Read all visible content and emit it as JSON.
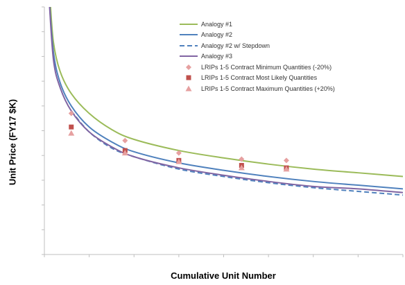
{
  "chart_data": {
    "type": "line",
    "title": "",
    "xlabel": "Cumulative Unit Number",
    "ylabel": "Unit Price (FY17 $K)",
    "xlim": [
      0,
      8
    ],
    "ylim": [
      0,
      10
    ],
    "grid": false,
    "legend_placement": "top-right",
    "series": [
      {
        "name": "Analogy #1",
        "kind": "line",
        "style": "solid",
        "color": "#9bbb59",
        "x": [
          0.12,
          0.2,
          0.35,
          0.6,
          1.0,
          1.5,
          2.0,
          3.0,
          4.0,
          5.0,
          6.0,
          7.0,
          8.0
        ],
        "y": [
          10.5,
          8.6,
          7.4,
          6.5,
          5.7,
          5.05,
          4.65,
          4.2,
          3.9,
          3.65,
          3.45,
          3.3,
          3.15
        ]
      },
      {
        "name": "Analogy #2",
        "kind": "line",
        "style": "solid",
        "color": "#4f81bd",
        "x": [
          0.1,
          0.2,
          0.35,
          0.6,
          1.0,
          1.5,
          2.0,
          3.0,
          4.0,
          5.0,
          6.0,
          7.0,
          8.0
        ],
        "y": [
          10.5,
          8.2,
          6.95,
          6.0,
          5.15,
          4.55,
          4.15,
          3.7,
          3.4,
          3.15,
          2.95,
          2.8,
          2.65
        ]
      },
      {
        "name": "Analogy #2 w/ Stepdown",
        "kind": "line",
        "style": "dashed",
        "color": "#4f81bd",
        "x": [
          0.6,
          1.0,
          1.5,
          2.0,
          3.0,
          4.0,
          5.0,
          6.0,
          7.0,
          8.0
        ],
        "y": [
          5.8,
          4.95,
          4.3,
          3.95,
          3.45,
          3.15,
          2.9,
          2.7,
          2.55,
          2.4
        ]
      },
      {
        "name": "Analogy #3",
        "kind": "line",
        "style": "solid",
        "color": "#8064a2",
        "x": [
          0.1,
          0.2,
          0.35,
          0.6,
          1.0,
          1.5,
          2.0,
          3.0,
          4.0,
          5.0,
          6.0,
          7.0,
          8.0
        ],
        "y": [
          10.5,
          7.9,
          6.75,
          5.8,
          4.95,
          4.35,
          3.95,
          3.5,
          3.2,
          2.95,
          2.75,
          2.65,
          2.5
        ]
      },
      {
        "name": "LRIPs 1-5 Contract Minimum Quantities (-20%)",
        "kind": "scatter",
        "marker": "diamond",
        "color": "#e6a0a0",
        "x": [
          0.6,
          1.8,
          3.0,
          4.4,
          5.4
        ],
        "y": [
          5.7,
          4.6,
          4.1,
          3.85,
          3.8
        ]
      },
      {
        "name": "LRIPs 1-5 Contract Most Likely Quantities",
        "kind": "scatter",
        "marker": "square",
        "color": "#c0504d",
        "x": [
          0.6,
          1.8,
          3.0,
          4.4,
          5.4
        ],
        "y": [
          5.15,
          4.2,
          3.8,
          3.6,
          3.5
        ]
      },
      {
        "name": "LRIPs 1-5 Contract Maximum Quantities (+20%)",
        "kind": "scatter",
        "marker": "triangle",
        "color": "#e6a0a0",
        "x": [
          0.6,
          1.8,
          3.0,
          4.4,
          5.4
        ],
        "y": [
          4.9,
          4.1,
          3.75,
          3.5,
          3.45
        ]
      }
    ]
  }
}
